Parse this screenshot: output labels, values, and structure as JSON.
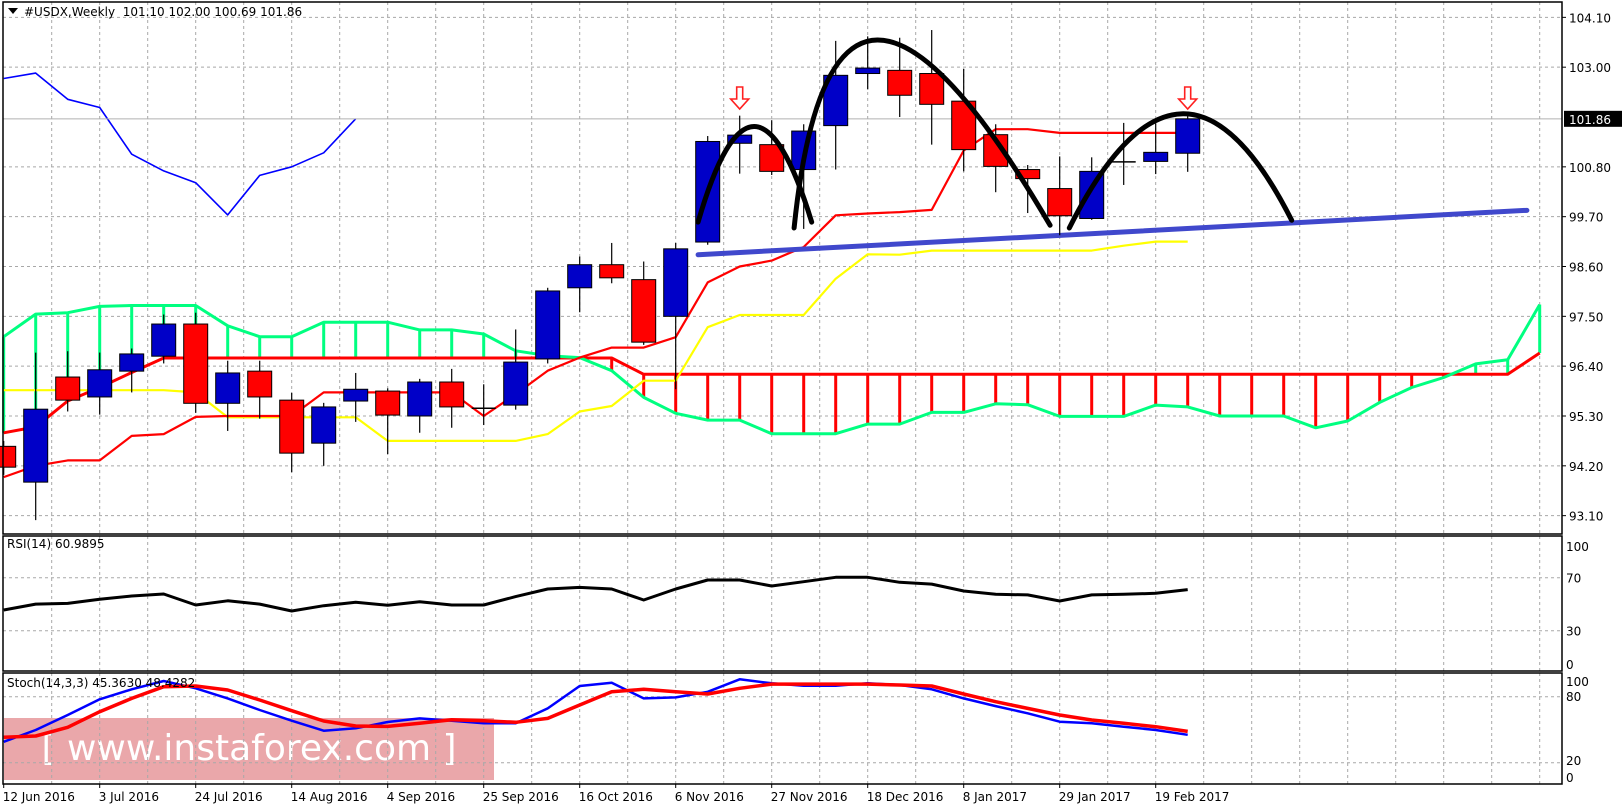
{
  "header": {
    "symbol": "#USDX,Weekly",
    "ohlc": "101.10 102.00 100.69 101.86"
  },
  "rsi_label": "RSI(14) 60.9895",
  "stoch_label": "Stoch(14,3,3) 45.3630 48.4282",
  "watermark": "[ www.instaforex.com ]",
  "colors": {
    "bull": "#0000c8",
    "bear": "#ff0000",
    "span_green": "#00ff80",
    "span_red": "#ff0000",
    "tenkan": "#ff0000",
    "kijun": "#ffff00",
    "chikou": "#0000ff",
    "trendline": "#4048cc",
    "annotation": "#000000",
    "rsi": "#000000",
    "stoch_k": "#0000ff",
    "stoch_d": "#ff0000",
    "grid": "#a8a8a8"
  },
  "chart_data": [
    {
      "type": "candlestick",
      "title": "#USDX,Weekly",
      "current_price": "101.86",
      "y_tick_labels": [
        "104.10",
        "103.00",
        "100.80",
        "99.70",
        "98.60",
        "97.50",
        "96.40",
        "95.30",
        "94.20",
        "93.10"
      ],
      "x_tick_labels": [
        "12 Jun 2016",
        "3 Jul 2016",
        "24 Jul 2016",
        "14 Aug 2016",
        "4 Sep 2016",
        "25 Sep 2016",
        "16 Oct 2016",
        "6 Nov 2016",
        "27 Nov 2016",
        "18 Dec 2016",
        "8 Jan 2017",
        "29 Jan 2017",
        "19 Feb 2017"
      ],
      "x_tick_every_weeks": 3,
      "grid": true,
      "candles": [
        [
          94.63,
          94.75,
          94.0,
          94.17
        ],
        [
          93.84,
          96.7,
          93.0,
          95.45
        ],
        [
          96.16,
          96.73,
          95.4,
          95.65
        ],
        [
          95.72,
          96.7,
          95.33,
          96.32
        ],
        [
          96.29,
          96.79,
          95.82,
          96.67
        ],
        [
          96.62,
          97.54,
          96.46,
          97.33
        ],
        [
          97.33,
          97.58,
          95.37,
          95.58
        ],
        [
          95.58,
          96.52,
          94.97,
          96.25
        ],
        [
          96.29,
          96.52,
          95.24,
          95.72
        ],
        [
          95.65,
          95.81,
          94.06,
          94.48
        ],
        [
          94.7,
          95.59,
          94.2,
          95.5
        ],
        [
          95.63,
          96.25,
          95.17,
          95.89
        ],
        [
          95.85,
          95.91,
          94.46,
          95.32
        ],
        [
          95.3,
          96.12,
          94.93,
          96.05
        ],
        [
          96.05,
          96.34,
          95.04,
          95.5
        ],
        [
          95.47,
          96.0,
          95.1,
          95.47
        ],
        [
          95.54,
          97.21,
          95.44,
          96.49
        ],
        [
          96.56,
          98.13,
          96.46,
          98.06
        ],
        [
          98.13,
          98.82,
          97.59,
          98.64
        ],
        [
          98.64,
          99.12,
          98.23,
          98.35
        ],
        [
          98.31,
          98.71,
          96.87,
          96.93
        ],
        [
          97.5,
          99.12,
          95.89,
          98.99
        ],
        [
          99.14,
          101.48,
          99.08,
          101.36
        ],
        [
          101.32,
          101.93,
          100.65,
          101.5
        ],
        [
          101.29,
          101.83,
          100.62,
          100.7
        ],
        [
          100.74,
          101.74,
          99.43,
          101.59
        ],
        [
          101.71,
          103.58,
          100.74,
          102.82
        ],
        [
          102.86,
          103.68,
          102.51,
          102.98
        ],
        [
          102.93,
          103.65,
          101.9,
          102.38
        ],
        [
          102.86,
          103.82,
          101.29,
          102.18
        ],
        [
          102.25,
          102.96,
          100.7,
          101.18
        ],
        [
          101.51,
          101.74,
          100.24,
          100.81
        ],
        [
          100.74,
          100.84,
          99.78,
          100.54
        ],
        [
          100.32,
          101.03,
          99.29,
          99.72
        ],
        [
          99.66,
          101.01,
          99.63,
          100.7
        ],
        [
          100.91,
          101.77,
          100.4,
          100.91
        ],
        [
          100.92,
          101.76,
          100.64,
          101.12
        ],
        [
          101.1,
          102.0,
          100.69,
          101.86
        ]
      ],
      "ichimoku": {
        "tenkan": [
          93.95,
          94.2,
          94.32,
          94.32,
          94.86,
          94.9,
          95.28,
          95.3,
          95.3,
          95.3,
          95.82,
          95.82,
          95.82,
          95.82,
          95.82,
          95.3,
          95.78,
          96.3,
          96.59,
          96.81,
          96.81,
          97.04,
          98.25,
          98.6,
          98.73,
          99.03,
          99.73,
          99.77,
          99.8,
          99.85,
          101.16,
          101.63,
          101.63,
          101.55,
          101.55,
          101.55,
          101.55,
          101.55
        ],
        "kijun": [
          95.87,
          95.87,
          95.87,
          95.87,
          95.87,
          95.87,
          95.82,
          95.27,
          95.27,
          95.27,
          95.27,
          95.27,
          94.75,
          94.75,
          94.75,
          94.75,
          94.75,
          94.9,
          95.4,
          95.52,
          96.08,
          96.08,
          97.26,
          97.53,
          97.53,
          97.53,
          98.33,
          98.87,
          98.86,
          98.95,
          98.95,
          98.95,
          98.95,
          98.95,
          98.95,
          99.06,
          99.15,
          99.15
        ],
        "chikou": [
          102.75,
          102.87,
          102.29,
          102.11,
          101.08,
          100.71,
          100.45,
          99.74,
          100.61,
          100.8,
          101.11,
          101.86
        ],
        "span_green": [
          97.05,
          97.55,
          97.58,
          97.72,
          97.74,
          97.74,
          97.74,
          97.29,
          97.05,
          97.05,
          97.37,
          97.37,
          97.37,
          97.2,
          97.2,
          97.11,
          96.74,
          96.63,
          96.59,
          96.3,
          95.71,
          95.36,
          95.21,
          95.21,
          94.91,
          94.91,
          94.91,
          95.12,
          95.12,
          95.38,
          95.38,
          95.57,
          95.55,
          95.29,
          95.29,
          95.29,
          95.54,
          95.5,
          95.3,
          95.3,
          95.3,
          95.04,
          95.19,
          95.6,
          95.93,
          96.15,
          96.45,
          96.54,
          97.76
        ],
        "span_red": [
          94.93,
          95.06,
          95.63,
          95.93,
          96.26,
          96.58,
          96.58,
          96.58,
          96.58,
          96.58,
          96.58,
          96.58,
          96.58,
          96.58,
          96.58,
          96.58,
          96.58,
          96.58,
          96.58,
          96.58,
          96.22,
          96.22,
          96.22,
          96.22,
          96.22,
          96.22,
          96.22,
          96.22,
          96.22,
          96.22,
          96.22,
          96.22,
          96.22,
          96.22,
          96.22,
          96.22,
          96.22,
          96.22,
          96.22,
          96.22,
          96.22,
          96.22,
          96.22,
          96.22,
          96.22,
          96.22,
          96.22,
          96.22,
          96.69
        ]
      },
      "annotations": {
        "trendline": [
          [
            21.7,
            98.86
          ],
          [
            47.6,
            99.84
          ]
        ],
        "arcs": [
          [
            [
              21.7,
              99.58
            ],
            [
              23.45,
              101.69
            ],
            [
              25.25,
              99.58
            ]
          ],
          [
            [
              24.7,
              99.45
            ],
            [
              27.3,
              103.6
            ],
            [
              32.7,
              99.51
            ]
          ],
          [
            [
              33.3,
              99.45
            ],
            [
              36.8,
              101.97
            ],
            [
              40.25,
              99.62
            ]
          ]
        ],
        "down_arrows_at_week": [
          23,
          37
        ]
      }
    },
    {
      "type": "line",
      "title": "RSI(14) 60.9895",
      "ylim": [
        0,
        100
      ],
      "y_tick_labels": [
        "100",
        "70",
        "30",
        "0"
      ],
      "values": [
        45.6,
        50.1,
        50.6,
        53.7,
        56.2,
        57.7,
        49.4,
        52.6,
        50.1,
        44.9,
        48.9,
        51.4,
        49.2,
        51.9,
        49.4,
        49.4,
        55.7,
        61.5,
        62.7,
        61.5,
        53.2,
        61.5,
        68.3,
        68.3,
        63.7,
        67,
        70.3,
        70.3,
        66.5,
        65.2,
        60,
        57.5,
        57,
        52.4,
        57,
        57.5,
        58.2,
        60.99
      ]
    },
    {
      "type": "line",
      "title": "Stoch(14,3,3) 45.3630 48.4282",
      "ylim": [
        0,
        100
      ],
      "y_tick_labels": [
        "100",
        "80",
        "20",
        "0"
      ],
      "series": [
        {
          "values": [
            39,
            49.7,
            63.4,
            77.6,
            86.7,
            94.3,
            87.6,
            78.5,
            67.9,
            58.2,
            49.1,
            51.3,
            57,
            60.3,
            58.2,
            55.8,
            55.8,
            69.4,
            89.7,
            92.7,
            78.5,
            79.4,
            84.5,
            95.8,
            92.2,
            90,
            90,
            92.2,
            90.6,
            86.7,
            78.5,
            71.5,
            64.9,
            57.3,
            55.8,
            52.7,
            49.7,
            45.36
          ]
        },
        {
          "values": [
            43.1,
            44.3,
            52.2,
            66.4,
            78.5,
            89.1,
            89.7,
            86.1,
            77,
            67.3,
            57.9,
            53.4,
            53,
            55.8,
            59,
            58.2,
            56.7,
            60.3,
            72.5,
            84.5,
            86.7,
            84.5,
            82.5,
            87.6,
            91.5,
            91.5,
            91.5,
            91.5,
            90.6,
            89.7,
            82.5,
            75.5,
            69.4,
            63.4,
            58.8,
            55.8,
            52.7,
            48.43
          ]
        }
      ]
    }
  ]
}
